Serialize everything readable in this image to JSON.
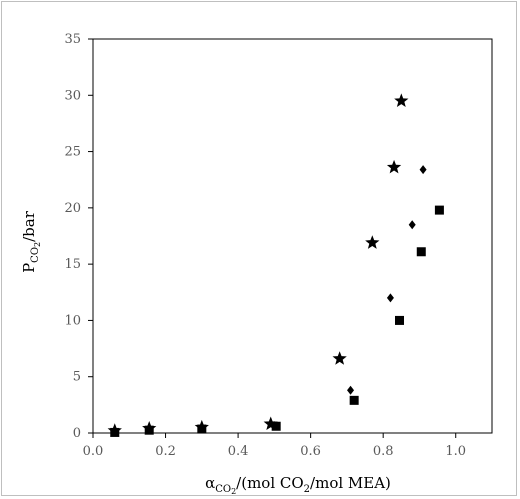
{
  "chart_data": {
    "type": "scatter",
    "title": "",
    "xlabel": {
      "symbol": "α",
      "symbol_sub": "CO",
      "symbol_sub2": "2",
      "sep": "/(mol CO",
      "sub": "2",
      "rest": "/mol MEA)"
    },
    "ylabel": {
      "symbol": "P",
      "symbol_sub": "CO",
      "symbol_sub2": "2",
      "rest": "/bar"
    },
    "xlim": [
      0.0,
      1.1
    ],
    "ylim": [
      0,
      35
    ],
    "x_ticks": [
      0.0,
      0.2,
      0.4,
      0.6,
      0.8,
      1.0
    ],
    "x_tick_labels": [
      "0.0",
      "0.2",
      "0.4",
      "0.6",
      "0.8",
      "1.0"
    ],
    "y_ticks": [
      0,
      5,
      10,
      15,
      20,
      25,
      30,
      35
    ],
    "y_tick_labels": [
      "0",
      "5",
      "10",
      "15",
      "20",
      "25",
      "30",
      "35"
    ],
    "grid": false,
    "legend": "none",
    "series": [
      {
        "marker": "star",
        "color": "#000000",
        "points": [
          {
            "x": 0.06,
            "y": 0.2
          },
          {
            "x": 0.155,
            "y": 0.4
          },
          {
            "x": 0.3,
            "y": 0.5
          },
          {
            "x": 0.49,
            "y": 0.8
          },
          {
            "x": 0.68,
            "y": 6.6
          },
          {
            "x": 0.77,
            "y": 16.9
          },
          {
            "x": 0.83,
            "y": 23.6
          },
          {
            "x": 0.85,
            "y": 29.5
          }
        ]
      },
      {
        "marker": "diamond",
        "color": "#000000",
        "points": [
          {
            "x": 0.06,
            "y": 0.15
          },
          {
            "x": 0.155,
            "y": 0.3
          },
          {
            "x": 0.3,
            "y": 0.45
          },
          {
            "x": 0.5,
            "y": 0.65
          },
          {
            "x": 0.71,
            "y": 3.8
          },
          {
            "x": 0.82,
            "y": 12.0
          },
          {
            "x": 0.88,
            "y": 18.5
          },
          {
            "x": 0.91,
            "y": 23.4
          }
        ]
      },
      {
        "marker": "square",
        "color": "#000000",
        "points": [
          {
            "x": 0.06,
            "y": 0.05
          },
          {
            "x": 0.155,
            "y": 0.25
          },
          {
            "x": 0.3,
            "y": 0.35
          },
          {
            "x": 0.505,
            "y": 0.6
          },
          {
            "x": 0.72,
            "y": 2.9
          },
          {
            "x": 0.845,
            "y": 10.0
          },
          {
            "x": 0.905,
            "y": 16.1
          },
          {
            "x": 0.955,
            "y": 19.8
          }
        ]
      }
    ]
  }
}
